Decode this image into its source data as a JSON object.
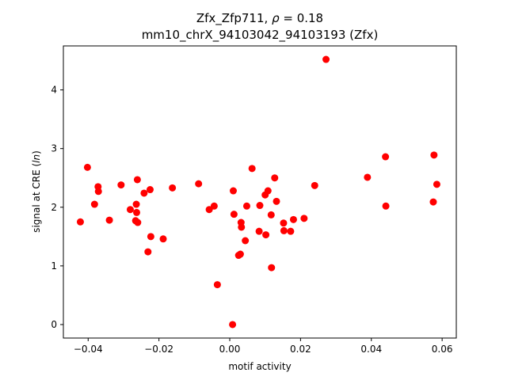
{
  "chart_data": {
    "type": "scatter",
    "title_line1_prefix": "Zfx_Zfp711, ",
    "title_rho_symbol": "ρ",
    "title_rho_value": " = 0.18",
    "title_line2": "mm10_chrX_94103042_94103193 (Zfx)",
    "xlabel": "motif activity",
    "ylabel_prefix": "signal at CRE (",
    "ylabel_italic": "ln",
    "ylabel_suffix": ")",
    "xlim": [
      -0.047,
      0.064
    ],
    "ylim": [
      -0.23,
      4.75
    ],
    "xticks": [
      -0.04,
      -0.02,
      0.0,
      0.02,
      0.04,
      0.06
    ],
    "xtick_labels": [
      "−0.04",
      "−0.02",
      "0.00",
      "0.02",
      "0.04",
      "0.06"
    ],
    "yticks": [
      0,
      1,
      2,
      3,
      4
    ],
    "ytick_labels": [
      "0",
      "1",
      "2",
      "3",
      "4"
    ],
    "marker_color": "#ff0000",
    "points": [
      {
        "x": -0.0422,
        "y": 1.75
      },
      {
        "x": -0.0402,
        "y": 2.68
      },
      {
        "x": -0.0382,
        "y": 2.05
      },
      {
        "x": -0.0372,
        "y": 2.35
      },
      {
        "x": -0.0371,
        "y": 2.27
      },
      {
        "x": -0.034,
        "y": 1.78
      },
      {
        "x": -0.0307,
        "y": 2.38
      },
      {
        "x": -0.0281,
        "y": 1.96
      },
      {
        "x": -0.0266,
        "y": 1.77
      },
      {
        "x": -0.0264,
        "y": 2.05
      },
      {
        "x": -0.0263,
        "y": 1.91
      },
      {
        "x": -0.0261,
        "y": 2.47
      },
      {
        "x": -0.026,
        "y": 1.74
      },
      {
        "x": -0.0242,
        "y": 2.24
      },
      {
        "x": -0.0231,
        "y": 1.24
      },
      {
        "x": -0.0225,
        "y": 2.3
      },
      {
        "x": -0.0223,
        "y": 1.5
      },
      {
        "x": -0.0188,
        "y": 1.46
      },
      {
        "x": -0.0162,
        "y": 2.33
      },
      {
        "x": -0.0088,
        "y": 2.4
      },
      {
        "x": -0.0058,
        "y": 1.96
      },
      {
        "x": -0.0044,
        "y": 2.02
      },
      {
        "x": -0.0035,
        "y": 0.68
      },
      {
        "x": 0.0008,
        "y": 0.0
      },
      {
        "x": 0.001,
        "y": 2.28
      },
      {
        "x": 0.0012,
        "y": 1.88
      },
      {
        "x": 0.0025,
        "y": 1.18
      },
      {
        "x": 0.003,
        "y": 1.2
      },
      {
        "x": 0.0032,
        "y": 1.74
      },
      {
        "x": 0.0033,
        "y": 1.66
      },
      {
        "x": 0.0044,
        "y": 1.43
      },
      {
        "x": 0.0048,
        "y": 2.02
      },
      {
        "x": 0.0063,
        "y": 2.66
      },
      {
        "x": 0.0083,
        "y": 1.59
      },
      {
        "x": 0.0085,
        "y": 2.03
      },
      {
        "x": 0.01,
        "y": 2.21
      },
      {
        "x": 0.0102,
        "y": 1.53
      },
      {
        "x": 0.0108,
        "y": 2.28
      },
      {
        "x": 0.0117,
        "y": 1.87
      },
      {
        "x": 0.0118,
        "y": 0.97
      },
      {
        "x": 0.0127,
        "y": 2.5
      },
      {
        "x": 0.0132,
        "y": 2.1
      },
      {
        "x": 0.0152,
        "y": 1.73
      },
      {
        "x": 0.0153,
        "y": 1.6
      },
      {
        "x": 0.0172,
        "y": 1.59
      },
      {
        "x": 0.018,
        "y": 1.79
      },
      {
        "x": 0.021,
        "y": 1.81
      },
      {
        "x": 0.024,
        "y": 2.37
      },
      {
        "x": 0.0272,
        "y": 4.52
      },
      {
        "x": 0.0389,
        "y": 2.51
      },
      {
        "x": 0.044,
        "y": 2.86
      },
      {
        "x": 0.0441,
        "y": 2.02
      },
      {
        "x": 0.0575,
        "y": 2.09
      },
      {
        "x": 0.0577,
        "y": 2.89
      },
      {
        "x": 0.0585,
        "y": 2.39
      }
    ]
  }
}
